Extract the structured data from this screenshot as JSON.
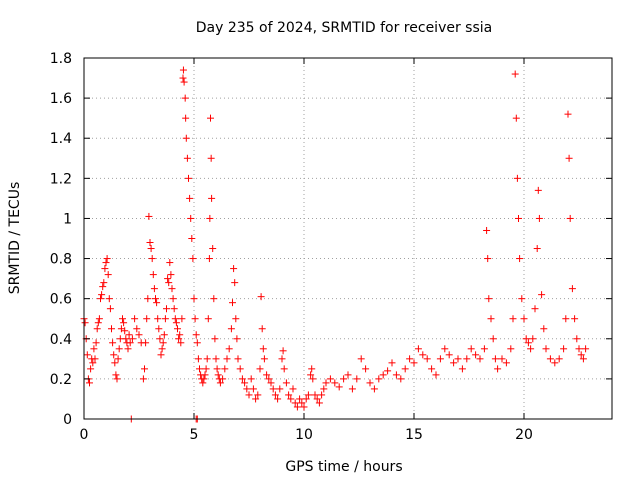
{
  "chart_data": {
    "type": "scatter",
    "title": "Day 235 of 2024, SRMTID for receiver ssia",
    "xlabel": "GPS time / hours",
    "ylabel": "SRMTID / TECUs",
    "xlim": [
      0,
      24
    ],
    "ylim": [
      0,
      1.8
    ],
    "x_ticks": [
      0,
      5,
      10,
      15,
      20
    ],
    "x_tick_labels": [
      "0",
      "5",
      "10",
      "15",
      "20"
    ],
    "y_ticks": [
      0,
      0.2,
      0.4,
      0.6,
      0.8,
      1,
      1.2,
      1.4,
      1.6,
      1.8
    ],
    "y_tick_labels": [
      "0",
      "0.2",
      "0.4",
      "0.6",
      "0.8",
      "1",
      "1.2",
      "1.4",
      "1.6",
      "1.8"
    ],
    "grid": true,
    "marker": "+",
    "series_color": "#ff0000",
    "series": [
      {
        "name": "SRMTID",
        "points": [
          [
            0.0,
            0.5
          ],
          [
            0.05,
            0.48
          ],
          [
            0.1,
            0.4
          ],
          [
            0.15,
            0.32
          ],
          [
            0.2,
            0.2
          ],
          [
            0.25,
            0.18
          ],
          [
            0.3,
            0.25
          ],
          [
            0.35,
            0.3
          ],
          [
            0.4,
            0.28
          ],
          [
            0.45,
            0.35
          ],
          [
            0.5,
            0.3
          ],
          [
            0.55,
            0.38
          ],
          [
            0.6,
            0.45
          ],
          [
            0.65,
            0.48
          ],
          [
            0.7,
            0.5
          ],
          [
            0.75,
            0.6
          ],
          [
            0.8,
            0.62
          ],
          [
            0.85,
            0.66
          ],
          [
            0.9,
            0.68
          ],
          [
            0.95,
            0.75
          ],
          [
            1.0,
            0.78
          ],
          [
            1.05,
            0.8
          ],
          [
            1.1,
            0.72
          ],
          [
            1.15,
            0.6
          ],
          [
            1.2,
            0.55
          ],
          [
            1.25,
            0.45
          ],
          [
            1.3,
            0.38
          ],
          [
            1.35,
            0.32
          ],
          [
            1.4,
            0.28
          ],
          [
            1.45,
            0.22
          ],
          [
            1.5,
            0.2
          ],
          [
            1.55,
            0.3
          ],
          [
            1.6,
            0.35
          ],
          [
            1.65,
            0.4
          ],
          [
            1.7,
            0.45
          ],
          [
            1.75,
            0.5
          ],
          [
            1.8,
            0.48
          ],
          [
            1.85,
            0.44
          ],
          [
            1.9,
            0.4
          ],
          [
            1.95,
            0.38
          ],
          [
            2.0,
            0.35
          ],
          [
            2.05,
            0.42
          ],
          [
            2.1,
            0.38
          ],
          [
            2.2,
            0.4
          ],
          [
            2.3,
            0.5
          ],
          [
            2.4,
            0.45
          ],
          [
            2.5,
            0.42
          ],
          [
            2.6,
            0.38
          ],
          [
            2.7,
            0.2
          ],
          [
            2.75,
            0.25
          ],
          [
            2.8,
            0.38
          ],
          [
            2.85,
            0.5
          ],
          [
            2.9,
            0.6
          ],
          [
            2.95,
            1.01
          ],
          [
            3.0,
            0.88
          ],
          [
            3.05,
            0.85
          ],
          [
            3.1,
            0.8
          ],
          [
            3.15,
            0.72
          ],
          [
            3.2,
            0.65
          ],
          [
            3.25,
            0.6
          ],
          [
            3.3,
            0.58
          ],
          [
            3.35,
            0.5
          ],
          [
            3.4,
            0.45
          ],
          [
            3.45,
            0.4
          ],
          [
            3.5,
            0.32
          ],
          [
            3.55,
            0.35
          ],
          [
            3.6,
            0.38
          ],
          [
            3.65,
            0.42
          ],
          [
            3.7,
            0.5
          ],
          [
            3.75,
            0.55
          ],
          [
            3.8,
            0.7
          ],
          [
            3.85,
            0.68
          ],
          [
            3.9,
            0.78
          ],
          [
            3.95,
            0.72
          ],
          [
            4.0,
            0.65
          ],
          [
            4.05,
            0.6
          ],
          [
            4.1,
            0.55
          ],
          [
            4.15,
            0.5
          ],
          [
            4.2,
            0.48
          ],
          [
            4.25,
            0.45
          ],
          [
            4.3,
            0.4
          ],
          [
            4.35,
            0.42
          ],
          [
            4.4,
            0.38
          ],
          [
            4.45,
            0.5
          ],
          [
            4.5,
            1.7
          ],
          [
            4.52,
            1.74
          ],
          [
            4.55,
            1.68
          ],
          [
            4.6,
            1.6
          ],
          [
            4.62,
            1.5
          ],
          [
            4.65,
            1.4
          ],
          [
            4.7,
            1.3
          ],
          [
            4.75,
            1.2
          ],
          [
            4.8,
            1.1
          ],
          [
            4.85,
            1.0
          ],
          [
            4.9,
            0.9
          ],
          [
            4.95,
            0.8
          ],
          [
            5.0,
            0.6
          ],
          [
            5.05,
            0.5
          ],
          [
            5.1,
            0.42
          ],
          [
            5.15,
            0.38
          ],
          [
            5.2,
            0.3
          ],
          [
            5.25,
            0.25
          ],
          [
            5.3,
            0.22
          ],
          [
            5.35,
            0.2
          ],
          [
            5.4,
            0.18
          ],
          [
            5.45,
            0.2
          ],
          [
            5.5,
            0.22
          ],
          [
            5.55,
            0.25
          ],
          [
            5.6,
            0.3
          ],
          [
            5.65,
            0.5
          ],
          [
            5.7,
            0.8
          ],
          [
            5.72,
            1.0
          ],
          [
            5.75,
            1.5
          ],
          [
            5.78,
            1.3
          ],
          [
            5.8,
            1.1
          ],
          [
            5.85,
            0.85
          ],
          [
            5.9,
            0.6
          ],
          [
            5.95,
            0.4
          ],
          [
            6.0,
            0.3
          ],
          [
            6.05,
            0.25
          ],
          [
            6.1,
            0.22
          ],
          [
            6.15,
            0.2
          ],
          [
            6.2,
            0.18
          ],
          [
            6.3,
            0.2
          ],
          [
            6.4,
            0.25
          ],
          [
            6.5,
            0.3
          ],
          [
            6.6,
            0.35
          ],
          [
            6.7,
            0.45
          ],
          [
            6.75,
            0.58
          ],
          [
            6.8,
            0.75
          ],
          [
            6.85,
            0.68
          ],
          [
            6.9,
            0.5
          ],
          [
            6.95,
            0.4
          ],
          [
            7.0,
            0.3
          ],
          [
            7.1,
            0.25
          ],
          [
            7.2,
            0.2
          ],
          [
            7.3,
            0.18
          ],
          [
            7.4,
            0.15
          ],
          [
            7.5,
            0.12
          ],
          [
            7.6,
            0.2
          ],
          [
            7.7,
            0.15
          ],
          [
            7.8,
            0.1
          ],
          [
            7.9,
            0.12
          ],
          [
            8.0,
            0.25
          ],
          [
            8.05,
            0.61
          ],
          [
            8.1,
            0.45
          ],
          [
            8.15,
            0.35
          ],
          [
            8.2,
            0.3
          ],
          [
            8.3,
            0.22
          ],
          [
            8.4,
            0.2
          ],
          [
            8.5,
            0.18
          ],
          [
            8.6,
            0.15
          ],
          [
            8.7,
            0.12
          ],
          [
            8.8,
            0.1
          ],
          [
            8.9,
            0.15
          ],
          [
            9.0,
            0.3
          ],
          [
            9.05,
            0.34
          ],
          [
            9.1,
            0.25
          ],
          [
            9.2,
            0.18
          ],
          [
            9.3,
            0.12
          ],
          [
            9.4,
            0.1
          ],
          [
            9.5,
            0.15
          ],
          [
            9.6,
            0.08
          ],
          [
            9.7,
            0.06
          ],
          [
            9.8,
            0.1
          ],
          [
            9.9,
            0.08
          ],
          [
            10.0,
            0.06
          ],
          [
            10.1,
            0.1
          ],
          [
            10.2,
            0.12
          ],
          [
            10.3,
            0.22
          ],
          [
            10.35,
            0.25
          ],
          [
            10.4,
            0.2
          ],
          [
            10.5,
            0.12
          ],
          [
            10.6,
            0.1
          ],
          [
            10.7,
            0.08
          ],
          [
            10.8,
            0.12
          ],
          [
            10.9,
            0.15
          ],
          [
            11.0,
            0.18
          ],
          [
            11.2,
            0.2
          ],
          [
            11.4,
            0.18
          ],
          [
            11.6,
            0.16
          ],
          [
            11.8,
            0.2
          ],
          [
            12.0,
            0.22
          ],
          [
            12.2,
            0.15
          ],
          [
            12.4,
            0.2
          ],
          [
            12.6,
            0.3
          ],
          [
            12.8,
            0.25
          ],
          [
            13.0,
            0.18
          ],
          [
            13.2,
            0.15
          ],
          [
            13.4,
            0.2
          ],
          [
            13.6,
            0.22
          ],
          [
            13.8,
            0.24
          ],
          [
            14.0,
            0.28
          ],
          [
            14.2,
            0.22
          ],
          [
            14.4,
            0.2
          ],
          [
            14.6,
            0.25
          ],
          [
            14.8,
            0.3
          ],
          [
            15.0,
            0.28
          ],
          [
            15.2,
            0.35
          ],
          [
            15.4,
            0.32
          ],
          [
            15.6,
            0.3
          ],
          [
            15.8,
            0.25
          ],
          [
            16.0,
            0.22
          ],
          [
            16.2,
            0.3
          ],
          [
            16.4,
            0.35
          ],
          [
            16.6,
            0.32
          ],
          [
            16.8,
            0.28
          ],
          [
            17.0,
            0.3
          ],
          [
            17.2,
            0.25
          ],
          [
            17.4,
            0.3
          ],
          [
            17.6,
            0.35
          ],
          [
            17.8,
            0.32
          ],
          [
            18.0,
            0.3
          ],
          [
            18.2,
            0.35
          ],
          [
            18.3,
            0.94
          ],
          [
            18.35,
            0.8
          ],
          [
            18.4,
            0.6
          ],
          [
            18.5,
            0.5
          ],
          [
            18.6,
            0.4
          ],
          [
            18.7,
            0.3
          ],
          [
            18.8,
            0.25
          ],
          [
            19.0,
            0.3
          ],
          [
            19.2,
            0.28
          ],
          [
            19.4,
            0.35
          ],
          [
            19.5,
            0.5
          ],
          [
            19.6,
            1.72
          ],
          [
            19.65,
            1.5
          ],
          [
            19.7,
            1.2
          ],
          [
            19.75,
            1.0
          ],
          [
            19.8,
            0.8
          ],
          [
            19.9,
            0.6
          ],
          [
            20.0,
            0.5
          ],
          [
            20.1,
            0.4
          ],
          [
            20.2,
            0.38
          ],
          [
            20.3,
            0.35
          ],
          [
            20.4,
            0.4
          ],
          [
            20.5,
            0.55
          ],
          [
            20.6,
            0.85
          ],
          [
            20.65,
            1.14
          ],
          [
            20.7,
            1.0
          ],
          [
            20.8,
            0.62
          ],
          [
            20.9,
            0.45
          ],
          [
            21.0,
            0.35
          ],
          [
            21.2,
            0.3
          ],
          [
            21.4,
            0.28
          ],
          [
            21.6,
            0.3
          ],
          [
            21.8,
            0.35
          ],
          [
            21.9,
            0.5
          ],
          [
            22.0,
            1.52
          ],
          [
            22.05,
            1.3
          ],
          [
            22.1,
            1.0
          ],
          [
            22.2,
            0.65
          ],
          [
            22.3,
            0.5
          ],
          [
            22.4,
            0.4
          ],
          [
            22.5,
            0.35
          ],
          [
            22.6,
            0.32
          ],
          [
            22.7,
            0.3
          ],
          [
            22.8,
            0.35
          ],
          [
            2.15,
            0.0
          ],
          [
            5.1,
            0.0
          ],
          [
            5.15,
            0.0
          ]
        ]
      }
    ]
  }
}
